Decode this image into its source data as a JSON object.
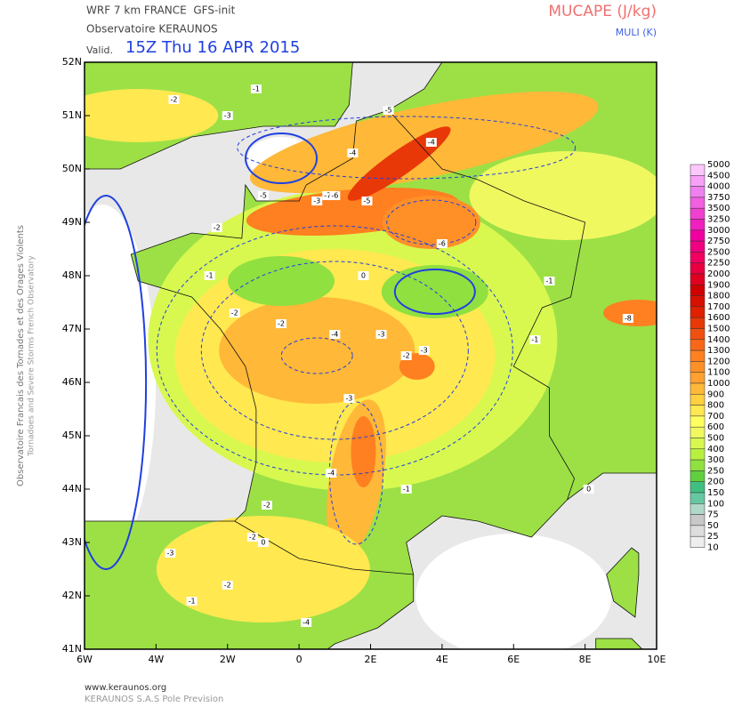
{
  "header": {
    "model": "WRF 7 km FRANCE  GFS-init",
    "org": "Observatoire KERAUNOS",
    "valid_prefix": "Valid.",
    "valid_time": "15Z Thu 16 APR 2015",
    "field": "MUCAPE (J/kg)",
    "contours": "MULI (K)"
  },
  "side_text": [
    "Observatoire Francais des Tornades et des Orages Violents",
    "Tornadoes and Severe Storms French Observatory"
  ],
  "footer": [
    "www.keraunos.org",
    "KERAUNOS S.A.S Pole Prevision"
  ],
  "map": {
    "xlim": [
      -6,
      10
    ],
    "ylim": [
      41,
      52
    ],
    "xticks": [
      {
        "value": -6,
        "label": "6W"
      },
      {
        "value": -4,
        "label": "4W"
      },
      {
        "value": -2,
        "label": "2W"
      },
      0,
      {
        "value": 2,
        "label": "2E"
      },
      {
        "value": 4,
        "label": "4E"
      },
      {
        "value": 6,
        "label": "6E"
      },
      {
        "value": 8,
        "label": "8E"
      },
      {
        "value": 10,
        "label": "10E"
      }
    ],
    "yticks": [
      {
        "value": 41,
        "label": "41N"
      },
      {
        "value": 42,
        "label": "42N"
      },
      {
        "value": 43,
        "label": "43N"
      },
      {
        "value": 44,
        "label": "44N"
      },
      {
        "value": 45,
        "label": "45N"
      },
      {
        "value": 46,
        "label": "46N"
      },
      {
        "value": 47,
        "label": "47N"
      },
      {
        "value": 48,
        "label": "48N"
      },
      {
        "value": 49,
        "label": "49N"
      },
      {
        "value": 50,
        "label": "50N"
      },
      {
        "value": 51,
        "label": "51N"
      },
      {
        "value": 52,
        "label": "52N"
      }
    ],
    "contour_labels": [
      "-1",
      "-2",
      "-3",
      "-4",
      "-5",
      "-2",
      "-3",
      "-7",
      "-6",
      "-5",
      "-6",
      "-5",
      "-4",
      "-1",
      "0",
      "-2",
      "-2",
      "-4",
      "-3",
      "-2",
      "-3",
      "-3",
      "-4",
      "-2",
      "-2",
      "-1",
      "-3",
      "-2",
      "-4",
      "-1",
      "0",
      "-1",
      "-8",
      "-1",
      "0"
    ]
  },
  "colorbar": {
    "levels": [
      5000,
      4500,
      4000,
      3750,
      3500,
      3250,
      3000,
      2750,
      2500,
      2250,
      2000,
      1900,
      1800,
      1700,
      1600,
      1500,
      1400,
      1300,
      1200,
      1100,
      1000,
      900,
      800,
      700,
      600,
      500,
      400,
      300,
      250,
      200,
      150,
      100,
      75,
      50,
      25,
      10
    ],
    "colors": [
      "#fcc8fc",
      "#f8a0f8",
      "#f080f0",
      "#f060e0",
      "#f040d0",
      "#f020c0",
      "#f000a0",
      "#f00080",
      "#f00060",
      "#e80040",
      "#e00020",
      "#d00000",
      "#d81000",
      "#e02000",
      "#e83808",
      "#f05010",
      "#f86818",
      "#ff8020",
      "#ff9028",
      "#ffa030",
      "#ffb838",
      "#ffd040",
      "#ffe850",
      "#ffff60",
      "#f0f860",
      "#d8f850",
      "#b8f040",
      "#90e040",
      "#60d040",
      "#40c080",
      "#66c8a0",
      "#b0d8c8",
      "#c8c8c8",
      "#dddddd",
      "#eeeeee",
      "#ffffff"
    ]
  }
}
